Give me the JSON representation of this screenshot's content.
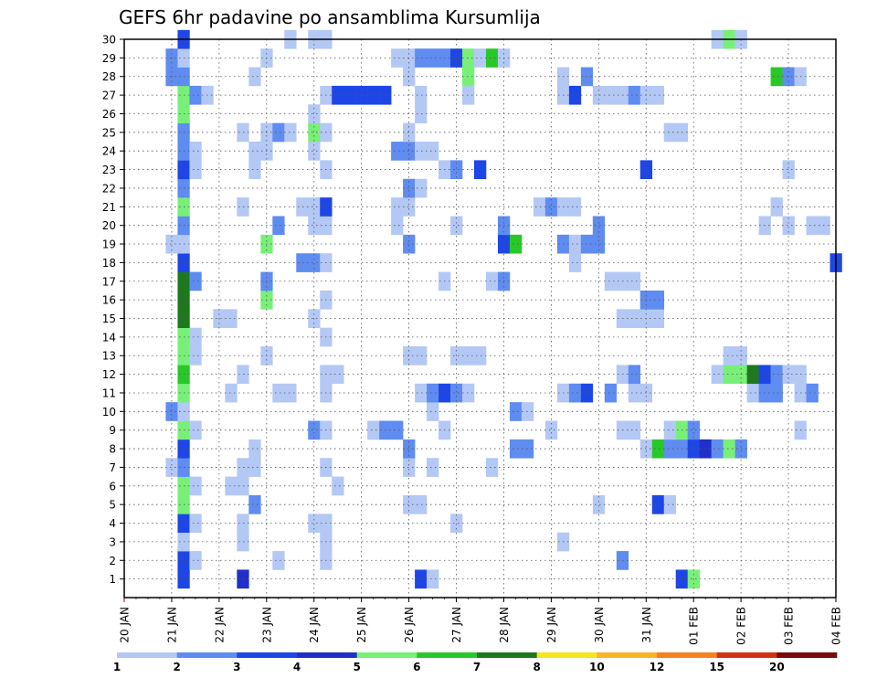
{
  "chart_data": {
    "type": "heatmap",
    "title": "GEFS 6hr padavine po ansamblima Kursumlija",
    "xlabel": "",
    "ylabel": "",
    "x_tick_labels": [
      "20 JAN",
      "21 JAN",
      "22 JAN",
      "23 JAN",
      "24 JAN",
      "25 JAN",
      "26 JAN",
      "27 JAN",
      "28 JAN",
      "29 JAN",
      "30 JAN",
      "31 JAN",
      "01 FEB",
      "02 FEB",
      "03 FEB",
      "04 FEB"
    ],
    "y_tick_labels": [
      "1",
      "2",
      "3",
      "4",
      "5",
      "6",
      "7",
      "8",
      "9",
      "10",
      "11",
      "12",
      "13",
      "14",
      "15",
      "16",
      "17",
      "18",
      "19",
      "20",
      "21",
      "22",
      "23",
      "24",
      "25",
      "26",
      "27",
      "28",
      "29",
      "30"
    ],
    "x_range_steps": [
      0,
      60
    ],
    "y_range": [
      0,
      30
    ],
    "grid": true,
    "colorbar": {
      "levels": [
        "1",
        "2",
        "3",
        "4",
        "5",
        "6",
        "7",
        "8",
        "10",
        "12",
        "15",
        "20"
      ],
      "colors": [
        "#b4c8f5",
        "#5f8cf0",
        "#1e46e6",
        "#1f2fc8",
        "#78f078",
        "#28c828",
        "#1e781e",
        "#f5e61e",
        "#fab428",
        "#f5821e",
        "#d23214",
        "#780a0a"
      ]
    },
    "member_cells": {
      "1": [
        [
          5,
          3
        ],
        [
          10,
          4
        ],
        [
          25,
          3
        ],
        [
          26,
          1
        ],
        [
          47,
          3
        ],
        [
          48,
          5
        ]
      ],
      "2": [
        [
          5,
          3
        ],
        [
          6,
          1
        ],
        [
          13,
          1
        ],
        [
          17,
          1
        ],
        [
          42,
          2
        ]
      ],
      "3": [
        [
          5,
          1
        ],
        [
          10,
          1
        ],
        [
          17,
          1
        ],
        [
          37,
          1
        ]
      ],
      "4": [
        [
          5,
          3
        ],
        [
          6,
          1
        ],
        [
          10,
          1
        ],
        [
          16,
          1
        ],
        [
          17,
          1
        ],
        [
          28,
          1
        ]
      ],
      "5": [
        [
          5,
          5
        ],
        [
          11,
          2
        ],
        [
          24,
          1
        ],
        [
          25,
          1
        ],
        [
          40,
          1
        ],
        [
          45,
          3
        ],
        [
          46,
          1
        ]
      ],
      "6": [
        [
          5,
          5
        ],
        [
          6,
          1
        ],
        [
          9,
          1
        ],
        [
          10,
          1
        ],
        [
          18,
          1
        ]
      ],
      "7": [
        [
          4,
          1
        ],
        [
          5,
          2
        ],
        [
          10,
          1
        ],
        [
          11,
          1
        ],
        [
          17,
          1
        ],
        [
          24,
          1
        ],
        [
          26,
          1
        ],
        [
          31,
          1
        ]
      ],
      "8": [
        [
          5,
          3
        ],
        [
          11,
          1
        ],
        [
          24,
          2
        ],
        [
          33,
          2
        ],
        [
          34,
          2
        ],
        [
          44,
          1
        ],
        [
          45,
          6
        ],
        [
          46,
          2
        ],
        [
          47,
          2
        ],
        [
          48,
          3
        ],
        [
          49,
          4
        ],
        [
          50,
          2
        ],
        [
          51,
          5
        ],
        [
          52,
          2
        ]
      ],
      "9": [
        [
          5,
          5
        ],
        [
          6,
          1
        ],
        [
          16,
          2
        ],
        [
          17,
          1
        ],
        [
          21,
          1
        ],
        [
          22,
          2
        ],
        [
          23,
          2
        ],
        [
          27,
          1
        ],
        [
          36,
          1
        ],
        [
          42,
          1
        ],
        [
          43,
          1
        ],
        [
          46,
          1
        ],
        [
          47,
          5
        ],
        [
          48,
          2
        ],
        [
          57,
          1
        ]
      ],
      "10": [
        [
          4,
          2
        ],
        [
          5,
          1
        ],
        [
          26,
          1
        ],
        [
          33,
          2
        ],
        [
          34,
          1
        ]
      ],
      "11": [
        [
          5,
          5
        ],
        [
          9,
          1
        ],
        [
          13,
          1
        ],
        [
          14,
          1
        ],
        [
          17,
          1
        ],
        [
          25,
          1
        ],
        [
          26,
          2
        ],
        [
          27,
          3
        ],
        [
          28,
          2
        ],
        [
          29,
          1
        ],
        [
          37,
          1
        ],
        [
          38,
          2
        ],
        [
          39,
          3
        ],
        [
          41,
          2
        ],
        [
          43,
          1
        ],
        [
          44,
          1
        ],
        [
          53,
          1
        ],
        [
          54,
          2
        ],
        [
          55,
          2
        ],
        [
          57,
          1
        ],
        [
          58,
          2
        ]
      ],
      "12": [
        [
          5,
          6
        ],
        [
          10,
          1
        ],
        [
          17,
          1
        ],
        [
          18,
          1
        ],
        [
          42,
          1
        ],
        [
          43,
          2
        ],
        [
          50,
          1
        ],
        [
          51,
          5
        ],
        [
          52,
          5
        ],
        [
          53,
          7
        ],
        [
          54,
          3
        ],
        [
          55,
          2
        ],
        [
          56,
          1
        ],
        [
          57,
          1
        ]
      ],
      "13": [
        [
          5,
          5
        ],
        [
          6,
          1
        ],
        [
          12,
          1
        ],
        [
          24,
          1
        ],
        [
          25,
          1
        ],
        [
          28,
          1
        ],
        [
          29,
          1
        ],
        [
          30,
          1
        ],
        [
          51,
          1
        ],
        [
          52,
          1
        ]
      ],
      "14": [
        [
          5,
          5
        ],
        [
          6,
          1
        ],
        [
          17,
          1
        ]
      ],
      "15": [
        [
          5,
          7
        ],
        [
          8,
          1
        ],
        [
          9,
          1
        ],
        [
          16,
          1
        ],
        [
          42,
          1
        ],
        [
          43,
          1
        ],
        [
          44,
          1
        ],
        [
          45,
          1
        ]
      ],
      "16": [
        [
          5,
          7
        ],
        [
          12,
          5
        ],
        [
          17,
          1
        ],
        [
          44,
          2
        ],
        [
          45,
          2
        ]
      ],
      "17": [
        [
          5,
          7
        ],
        [
          6,
          2
        ],
        [
          12,
          2
        ],
        [
          27,
          1
        ],
        [
          31,
          1
        ],
        [
          32,
          2
        ],
        [
          41,
          1
        ],
        [
          42,
          1
        ],
        [
          43,
          1
        ]
      ],
      "18": [
        [
          5,
          3
        ],
        [
          15,
          2
        ],
        [
          16,
          2
        ],
        [
          17,
          1
        ],
        [
          38,
          1
        ],
        [
          60,
          3
        ]
      ],
      "19": [
        [
          4,
          1
        ],
        [
          5,
          1
        ],
        [
          12,
          5
        ],
        [
          24,
          2
        ],
        [
          32,
          3
        ],
        [
          33,
          6
        ],
        [
          37,
          2
        ],
        [
          38,
          1
        ],
        [
          39,
          2
        ],
        [
          40,
          2
        ]
      ],
      "20": [
        [
          5,
          2
        ],
        [
          13,
          2
        ],
        [
          16,
          1
        ],
        [
          17,
          1
        ],
        [
          23,
          1
        ],
        [
          28,
          1
        ],
        [
          32,
          2
        ],
        [
          40,
          2
        ],
        [
          54,
          1
        ],
        [
          56,
          1
        ],
        [
          58,
          1
        ],
        [
          59,
          1
        ]
      ],
      "21": [
        [
          5,
          5
        ],
        [
          10,
          1
        ],
        [
          15,
          1
        ],
        [
          16,
          1
        ],
        [
          17,
          3
        ],
        [
          23,
          1
        ],
        [
          24,
          1
        ],
        [
          35,
          1
        ],
        [
          36,
          2
        ],
        [
          37,
          1
        ],
        [
          38,
          1
        ],
        [
          55,
          1
        ]
      ],
      "22": [
        [
          5,
          2
        ],
        [
          24,
          2
        ],
        [
          25,
          1
        ]
      ],
      "23": [
        [
          5,
          3
        ],
        [
          6,
          1
        ],
        [
          11,
          1
        ],
        [
          17,
          1
        ],
        [
          27,
          1
        ],
        [
          28,
          2
        ],
        [
          30,
          3
        ],
        [
          44,
          3
        ],
        [
          56,
          1
        ]
      ],
      "24": [
        [
          5,
          2
        ],
        [
          6,
          1
        ],
        [
          11,
          1
        ],
        [
          12,
          1
        ],
        [
          16,
          1
        ],
        [
          23,
          2
        ],
        [
          24,
          2
        ],
        [
          25,
          1
        ],
        [
          26,
          1
        ]
      ],
      "25": [
        [
          5,
          2
        ],
        [
          10,
          1
        ],
        [
          12,
          1
        ],
        [
          13,
          2
        ],
        [
          14,
          1
        ],
        [
          16,
          5
        ],
        [
          17,
          1
        ],
        [
          24,
          1
        ],
        [
          46,
          1
        ],
        [
          47,
          1
        ]
      ],
      "26": [
        [
          5,
          5
        ],
        [
          16,
          1
        ],
        [
          25,
          1
        ]
      ],
      "27": [
        [
          5,
          5
        ],
        [
          6,
          2
        ],
        [
          7,
          1
        ],
        [
          17,
          1
        ],
        [
          18,
          3
        ],
        [
          19,
          3
        ],
        [
          20,
          3
        ],
        [
          21,
          3
        ],
        [
          22,
          3
        ],
        [
          25,
          1
        ],
        [
          29,
          1
        ],
        [
          37,
          1
        ],
        [
          38,
          3
        ],
        [
          40,
          1
        ],
        [
          41,
          1
        ],
        [
          42,
          1
        ],
        [
          43,
          2
        ],
        [
          44,
          1
        ],
        [
          45,
          1
        ]
      ],
      "28": [
        [
          4,
          2
        ],
        [
          5,
          2
        ],
        [
          11,
          1
        ],
        [
          24,
          1
        ],
        [
          29,
          5
        ],
        [
          37,
          1
        ],
        [
          39,
          2
        ],
        [
          55,
          6
        ],
        [
          56,
          2
        ],
        [
          57,
          1
        ]
      ],
      "29": [
        [
          4,
          2
        ],
        [
          5,
          1
        ],
        [
          12,
          1
        ],
        [
          23,
          1
        ],
        [
          24,
          1
        ],
        [
          25,
          2
        ],
        [
          26,
          2
        ],
        [
          27,
          2
        ],
        [
          28,
          3
        ],
        [
          29,
          5
        ],
        [
          30,
          1
        ],
        [
          31,
          6
        ],
        [
          32,
          1
        ]
      ],
      "30": [
        [
          5,
          3
        ],
        [
          14,
          1
        ],
        [
          16,
          1
        ],
        [
          17,
          1
        ],
        [
          50,
          1
        ],
        [
          51,
          5
        ],
        [
          52,
          1
        ]
      ]
    }
  }
}
